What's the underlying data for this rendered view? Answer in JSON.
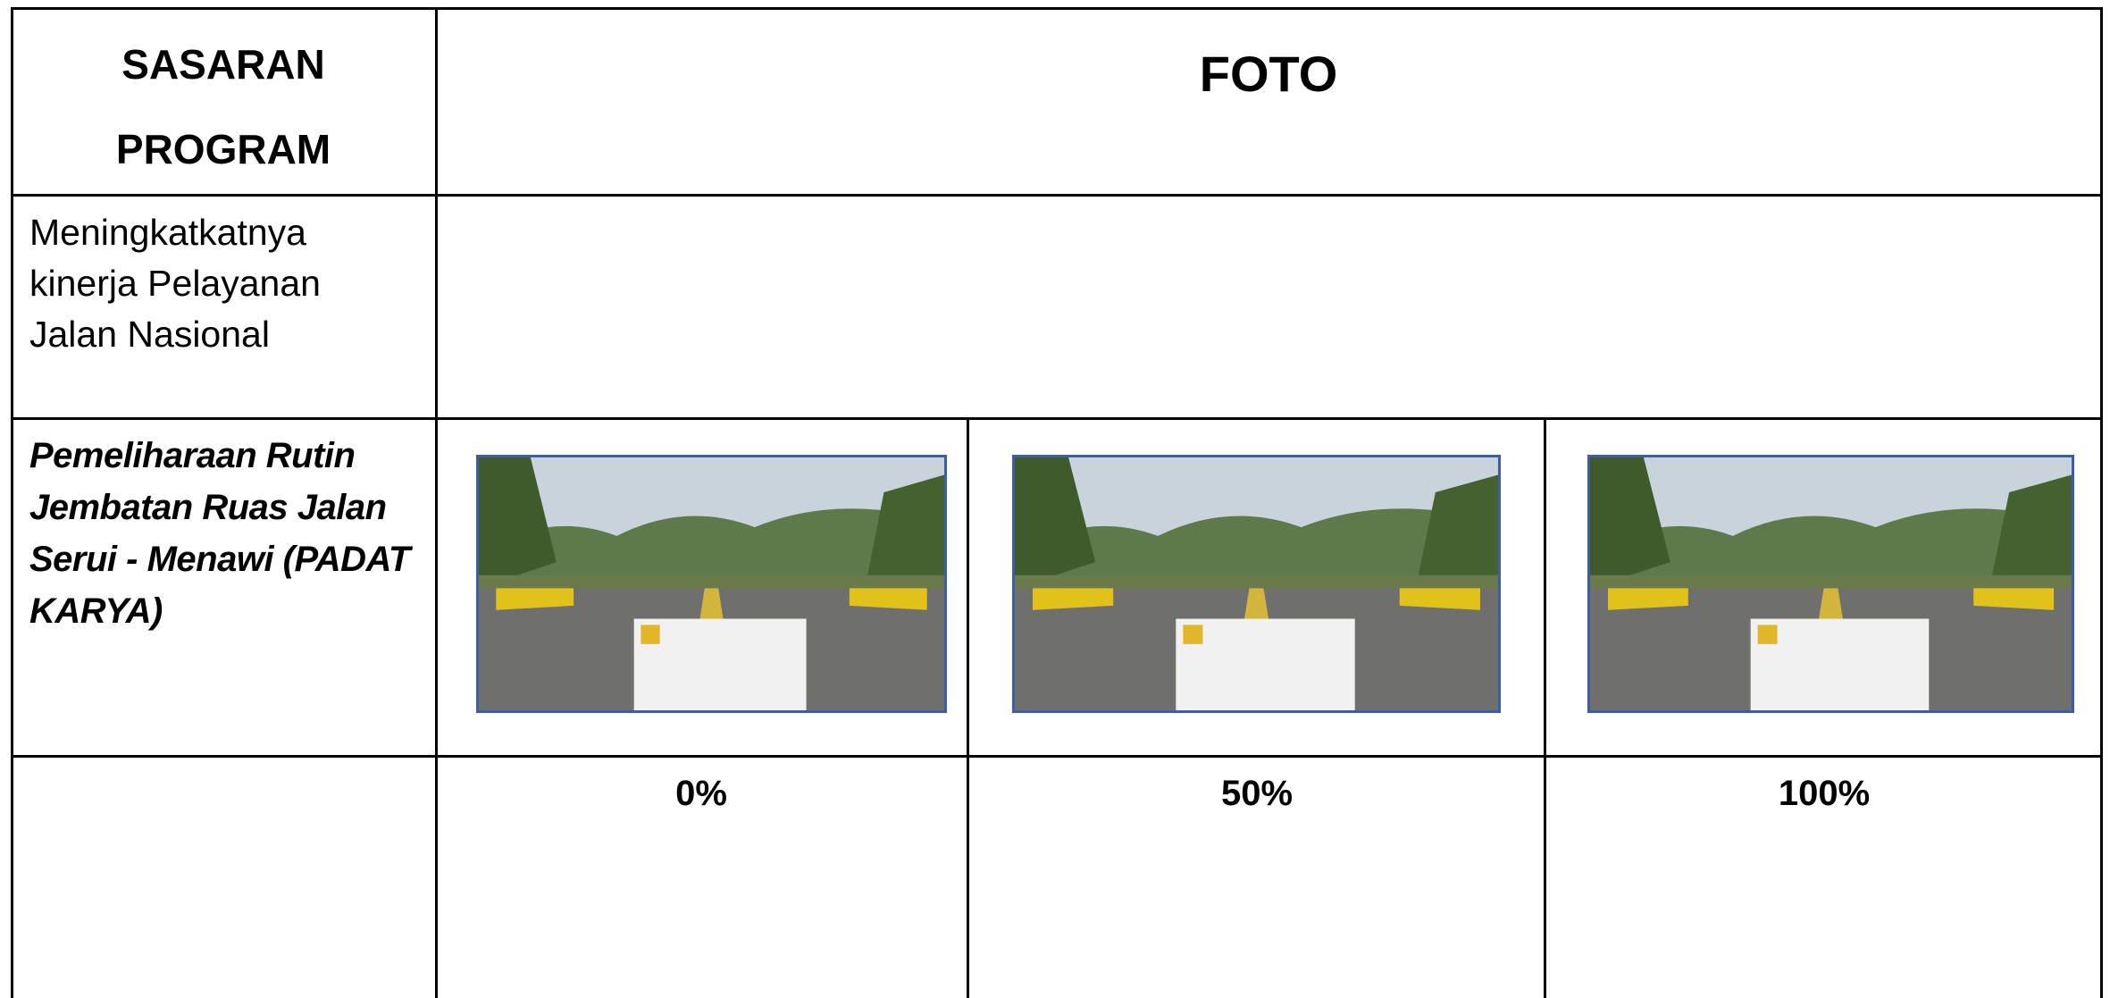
{
  "header": {
    "label_lines": [
      "SASARAN",
      "PROGRAM"
    ],
    "photo": "FOTO"
  },
  "program": {
    "lines": [
      "Meningkatkatnya",
      "kinerja Pelayanan",
      "Jalan Nasional"
    ]
  },
  "activity": {
    "lines": [
      "Pemeliharaan Rutin",
      "Jembatan Ruas Jalan",
      "Serui - Menawi (PADAT",
      "KARYA)"
    ]
  },
  "progress": [
    "0%",
    "50%",
    "100%"
  ]
}
